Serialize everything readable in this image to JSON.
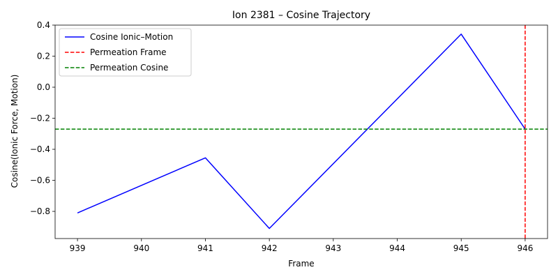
{
  "chart_data": {
    "type": "line",
    "title": "Ion 2381 – Cosine Trajectory",
    "xlabel": "Frame",
    "ylabel": "Cosine(Ionic Force, Motion)",
    "xlim": [
      938.65,
      946.35
    ],
    "ylim": [
      -0.975,
      0.4
    ],
    "xticks": [
      939,
      940,
      941,
      942,
      943,
      944,
      945,
      946
    ],
    "yticks": [
      -0.8,
      -0.6,
      -0.4,
      -0.2,
      0.0,
      0.2,
      0.4
    ],
    "ytick_labels": [
      "−0.8",
      "−0.6",
      "−0.4",
      "−0.2",
      "0.0",
      "0.2",
      "0.4"
    ],
    "grid": false,
    "legend_position": "upper-left",
    "series": [
      {
        "name": "Cosine Ionic–Motion",
        "color": "#0000ff",
        "style": "solid",
        "x": [
          939,
          941,
          942,
          945,
          946
        ],
        "y": [
          -0.81,
          -0.455,
          -0.91,
          0.342,
          -0.27
        ]
      }
    ],
    "reference_lines": [
      {
        "name": "Permeation Frame",
        "orientation": "vertical",
        "value": 946,
        "color": "#ff0000",
        "style": "dashed"
      },
      {
        "name": "Permeation Cosine",
        "orientation": "horizontal",
        "value": -0.27,
        "color": "#008000",
        "style": "dashed"
      }
    ]
  }
}
